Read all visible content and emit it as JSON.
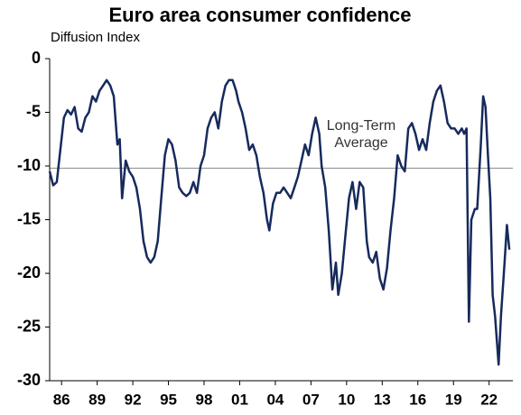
{
  "chart_data": {
    "type": "line",
    "title": "Euro area consumer confidence",
    "y_label": "Diffusion Index",
    "annotation": [
      "Long-Term",
      "Average"
    ],
    "average": -10.2,
    "xlim": [
      1985,
      2024
    ],
    "ylim": [
      -30,
      0
    ],
    "yticks": [
      0,
      -5,
      -10,
      -15,
      -20,
      -25,
      -30
    ],
    "xticks": [
      {
        "value": 1986,
        "label": "86"
      },
      {
        "value": 1989,
        "label": "89"
      },
      {
        "value": 1992,
        "label": "92"
      },
      {
        "value": 1995,
        "label": "95"
      },
      {
        "value": 1998,
        "label": "98"
      },
      {
        "value": 2001,
        "label": "01"
      },
      {
        "value": 2004,
        "label": "04"
      },
      {
        "value": 2007,
        "label": "07"
      },
      {
        "value": 2010,
        "label": "10"
      },
      {
        "value": 2013,
        "label": "13"
      },
      {
        "value": 2016,
        "label": "16"
      },
      {
        "value": 2019,
        "label": "19"
      },
      {
        "value": 2022,
        "label": "22"
      }
    ],
    "series": [
      {
        "color": "#172a5c",
        "x": [
          1985.0,
          1985.3,
          1985.6,
          1985.9,
          1986.2,
          1986.5,
          1986.8,
          1987.1,
          1987.4,
          1987.7,
          1988.0,
          1988.3,
          1988.6,
          1988.9,
          1989.2,
          1989.5,
          1989.8,
          1990.1,
          1990.4,
          1990.7,
          1990.9,
          1991.1,
          1991.4,
          1991.7,
          1992.0,
          1992.3,
          1992.6,
          1992.9,
          1993.2,
          1993.5,
          1993.8,
          1994.1,
          1994.4,
          1994.7,
          1995.0,
          1995.3,
          1995.6,
          1995.9,
          1996.2,
          1996.5,
          1996.8,
          1997.1,
          1997.4,
          1997.7,
          1998.0,
          1998.3,
          1998.6,
          1998.9,
          1999.2,
          1999.5,
          1999.8,
          2000.1,
          2000.4,
          2000.7,
          2000.9,
          2001.2,
          2001.5,
          2001.8,
          2002.1,
          2002.4,
          2002.7,
          2003.0,
          2003.3,
          2003.5,
          2003.8,
          2004.1,
          2004.4,
          2004.7,
          2005.0,
          2005.3,
          2005.6,
          2005.9,
          2006.2,
          2006.5,
          2006.8,
          2007.1,
          2007.4,
          2007.7,
          2007.9,
          2008.2,
          2008.5,
          2008.8,
          2009.1,
          2009.3,
          2009.6,
          2009.9,
          2010.2,
          2010.5,
          2010.8,
          2011.1,
          2011.4,
          2011.7,
          2011.9,
          2012.2,
          2012.5,
          2012.8,
          2013.1,
          2013.4,
          2013.7,
          2014.0,
          2014.3,
          2014.6,
          2014.9,
          2015.2,
          2015.5,
          2015.8,
          2016.1,
          2016.4,
          2016.7,
          2017.0,
          2017.3,
          2017.6,
          2017.9,
          2018.2,
          2018.5,
          2018.8,
          2019.1,
          2019.4,
          2019.7,
          2019.9,
          2020.1,
          2020.3,
          2020.5,
          2020.8,
          2021.0,
          2021.3,
          2021.5,
          2021.7,
          2021.9,
          2022.1,
          2022.3,
          2022.5,
          2022.7,
          2022.8,
          2023.0,
          2023.3,
          2023.5,
          2023.7
        ],
        "values": [
          -10.5,
          -11.8,
          -11.5,
          -8.5,
          -5.5,
          -4.8,
          -5.2,
          -4.5,
          -6.5,
          -6.8,
          -5.5,
          -5,
          -3.5,
          -4,
          -3,
          -2.5,
          -2,
          -2.5,
          -3.5,
          -8,
          -7.5,
          -13,
          -9.5,
          -10.5,
          -11,
          -12,
          -14,
          -17,
          -18.5,
          -19,
          -18.5,
          -17,
          -13,
          -9,
          -7.5,
          -8,
          -9.5,
          -12,
          -12.5,
          -12.8,
          -12.5,
          -11.5,
          -12.5,
          -10,
          -9,
          -6.5,
          -5.5,
          -5,
          -6.5,
          -4,
          -2.5,
          -2,
          -2,
          -3,
          -4,
          -5,
          -6.5,
          -8.5,
          -8,
          -9,
          -11,
          -12.5,
          -15,
          -16,
          -13.5,
          -12.5,
          -12.5,
          -12,
          -12.5,
          -13,
          -12,
          -11,
          -9.5,
          -8,
          -9,
          -7,
          -5.5,
          -7,
          -10,
          -12,
          -16,
          -21.5,
          -19,
          -22,
          -20,
          -16.5,
          -13,
          -11.5,
          -14,
          -11.5,
          -12,
          -17,
          -18.5,
          -19,
          -18,
          -20.5,
          -21.5,
          -19.5,
          -16,
          -13,
          -9,
          -10,
          -10.5,
          -6.5,
          -6,
          -7,
          -8.5,
          -7.5,
          -8.5,
          -6,
          -4,
          -3,
          -2.5,
          -4,
          -6,
          -6.5,
          -6.5,
          -7,
          -6.5,
          -7,
          -6.5,
          -24.5,
          -15,
          -14,
          -14,
          -8,
          -3.5,
          -4.5,
          -9,
          -13,
          -22,
          -24,
          -27,
          -28.5,
          -24,
          -19,
          -15.5,
          -17.8
        ]
      }
    ]
  }
}
